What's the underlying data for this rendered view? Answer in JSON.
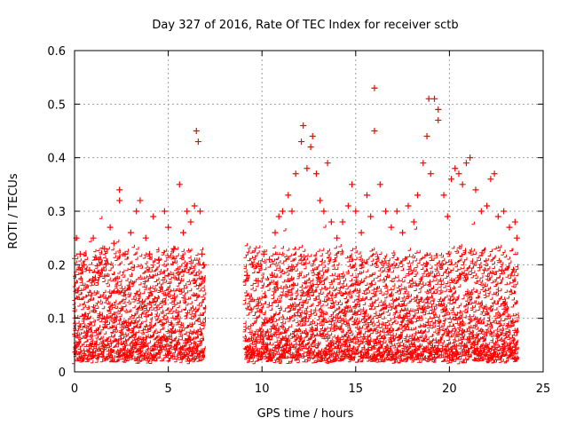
{
  "chart_data": {
    "type": "scatter",
    "title": "Day 327 of 2016, Rate Of TEC Index for receiver sctb",
    "xlabel": "GPS time / hours",
    "ylabel": "ROTI / TECUs",
    "xlim": [
      0,
      25
    ],
    "ylim": [
      0,
      0.6
    ],
    "grid": true,
    "x_ticks": [
      0,
      5,
      10,
      15,
      20,
      25
    ],
    "x_tick_labels": [
      "0",
      "5",
      "10",
      "15",
      "20",
      "25"
    ],
    "y_ticks": [
      0,
      0.1,
      0.2,
      0.3,
      0.4,
      0.5,
      0.6
    ],
    "y_tick_labels": [
      "0",
      "0.1",
      "0.2",
      "0.3",
      "0.4",
      "0.5",
      "0.6"
    ],
    "marker": "+",
    "color": "#ff0000",
    "series": [
      {
        "name": "ROTI",
        "data_gaps_hours": [
          [
            7.0,
            9.1
          ]
        ],
        "points": [
          [
            0.1,
            0.25
          ],
          [
            0.3,
            0.22
          ],
          [
            0.5,
            0.2
          ],
          [
            0.8,
            0.19
          ],
          [
            1.0,
            0.25
          ],
          [
            1.3,
            0.21
          ],
          [
            1.6,
            0.23
          ],
          [
            1.9,
            0.27
          ],
          [
            2.1,
            0.24
          ],
          [
            2.4,
            0.34
          ],
          [
            2.4,
            0.32
          ],
          [
            2.7,
            0.22
          ],
          [
            3.0,
            0.26
          ],
          [
            3.3,
            0.3
          ],
          [
            3.5,
            0.32
          ],
          [
            3.8,
            0.25
          ],
          [
            4.0,
            0.22
          ],
          [
            4.2,
            0.29
          ],
          [
            4.5,
            0.21
          ],
          [
            4.8,
            0.3
          ],
          [
            5.0,
            0.27
          ],
          [
            5.3,
            0.23
          ],
          [
            5.6,
            0.35
          ],
          [
            5.8,
            0.26
          ],
          [
            6.0,
            0.3
          ],
          [
            6.2,
            0.28
          ],
          [
            6.4,
            0.31
          ],
          [
            6.5,
            0.45
          ],
          [
            6.6,
            0.43
          ],
          [
            6.7,
            0.3
          ],
          [
            6.8,
            0.22
          ],
          [
            6.9,
            0.2
          ],
          [
            9.2,
            0.18
          ],
          [
            9.5,
            0.2
          ],
          [
            9.8,
            0.17
          ],
          [
            10.1,
            0.22
          ],
          [
            10.4,
            0.21
          ],
          [
            10.7,
            0.26
          ],
          [
            10.9,
            0.29
          ],
          [
            11.1,
            0.3
          ],
          [
            11.4,
            0.33
          ],
          [
            11.6,
            0.3
          ],
          [
            11.8,
            0.37
          ],
          [
            12.1,
            0.43
          ],
          [
            12.2,
            0.46
          ],
          [
            12.4,
            0.38
          ],
          [
            12.6,
            0.42
          ],
          [
            12.7,
            0.44
          ],
          [
            12.9,
            0.37
          ],
          [
            13.1,
            0.32
          ],
          [
            13.3,
            0.3
          ],
          [
            13.5,
            0.39
          ],
          [
            13.7,
            0.28
          ],
          [
            14.0,
            0.25
          ],
          [
            14.3,
            0.28
          ],
          [
            14.6,
            0.31
          ],
          [
            14.8,
            0.35
          ],
          [
            15.0,
            0.3
          ],
          [
            15.3,
            0.26
          ],
          [
            15.6,
            0.33
          ],
          [
            15.8,
            0.29
          ],
          [
            16.0,
            0.53
          ],
          [
            16.0,
            0.45
          ],
          [
            16.3,
            0.35
          ],
          [
            16.6,
            0.3
          ],
          [
            16.9,
            0.27
          ],
          [
            17.2,
            0.3
          ],
          [
            17.5,
            0.26
          ],
          [
            17.8,
            0.31
          ],
          [
            18.1,
            0.28
          ],
          [
            18.3,
            0.33
          ],
          [
            18.6,
            0.39
          ],
          [
            18.8,
            0.44
          ],
          [
            18.9,
            0.51
          ],
          [
            19.0,
            0.37
          ],
          [
            19.2,
            0.51
          ],
          [
            19.4,
            0.47
          ],
          [
            19.4,
            0.49
          ],
          [
            19.7,
            0.33
          ],
          [
            19.9,
            0.29
          ],
          [
            20.1,
            0.36
          ],
          [
            20.3,
            0.38
          ],
          [
            20.5,
            0.37
          ],
          [
            20.7,
            0.35
          ],
          [
            20.9,
            0.39
          ],
          [
            21.1,
            0.4
          ],
          [
            21.4,
            0.34
          ],
          [
            21.7,
            0.3
          ],
          [
            22.0,
            0.31
          ],
          [
            22.2,
            0.36
          ],
          [
            22.4,
            0.37
          ],
          [
            22.6,
            0.29
          ],
          [
            22.9,
            0.3
          ],
          [
            23.2,
            0.27
          ],
          [
            23.5,
            0.28
          ],
          [
            23.6,
            0.25
          ]
        ]
      }
    ]
  }
}
